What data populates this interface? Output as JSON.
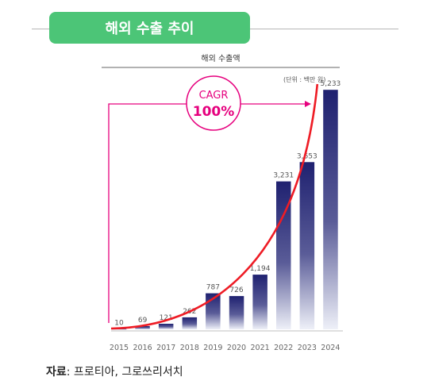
{
  "header": {
    "title": "해외 수출 추이"
  },
  "chart_data": {
    "type": "bar",
    "title": "해외 수출액",
    "unit_note": "(단위 : 백만 원)",
    "categories": [
      "2015",
      "2016",
      "2017",
      "2018",
      "2019",
      "2020",
      "2021",
      "2022",
      "2023",
      "2024"
    ],
    "values": [
      10,
      69,
      121,
      262,
      787,
      726,
      1194,
      3231,
      3653,
      5233
    ],
    "value_labels": [
      "10",
      "69",
      "121",
      "262",
      "787",
      "726",
      "1,194",
      "3,231",
      "3,653",
      "5,233"
    ],
    "ylim": [
      0,
      5600
    ],
    "trend_line": {
      "color": "#ee1c25"
    },
    "annotation": {
      "label": "CAGR",
      "value": "100%",
      "color": "#e6007e"
    },
    "bar_color": "#1f2170"
  },
  "source": {
    "prefix": "자료",
    "text": ": 프로티아, 그로쓰리서치"
  }
}
